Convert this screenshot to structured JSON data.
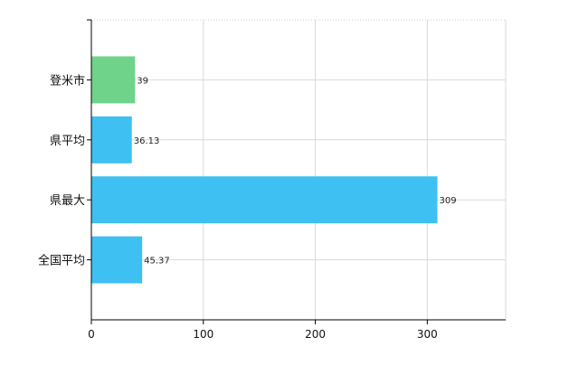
{
  "chart_data": {
    "type": "bar",
    "orientation": "horizontal",
    "title": "",
    "xlabel": "",
    "ylabel": "",
    "categories": [
      "登米市",
      "県平均",
      "県最大",
      "全国平均"
    ],
    "series": [
      {
        "values": [
          39,
          36.13,
          309,
          45.37
        ],
        "value_labels": [
          "39",
          "36.13",
          "309",
          "45.37"
        ],
        "colors": [
          "#6fd38a",
          "#3ec0f2",
          "#3ec0f2",
          "#3ec0f2"
        ]
      }
    ],
    "xlim": [
      0,
      370
    ],
    "x_ticks": [
      0,
      100,
      200,
      300
    ],
    "x_tick_labels": [
      "0",
      "100",
      "200",
      "300"
    ],
    "grid": true,
    "legend": "none"
  }
}
